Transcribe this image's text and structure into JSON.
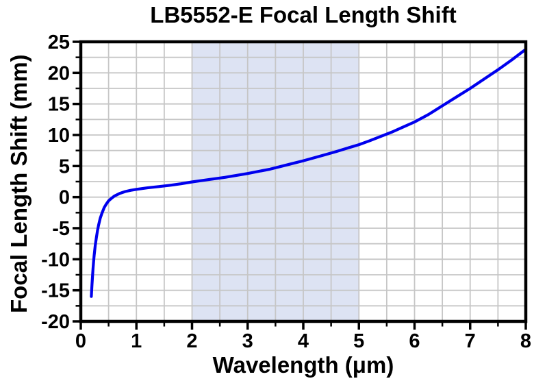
{
  "chart_data": {
    "type": "line",
    "title": "LB5552-E Focal Length Shift",
    "xlabel": "Wavelength (μm)",
    "ylabel": "Focal Length Shift (mm)",
    "xlim": [
      0,
      8
    ],
    "ylim": [
      -20,
      25
    ],
    "x_ticks": [
      0,
      1,
      2,
      3,
      4,
      5,
      6,
      7,
      8
    ],
    "y_ticks": [
      -20,
      -15,
      -10,
      -5,
      0,
      5,
      10,
      15,
      20,
      25
    ],
    "x_minor_tick_step": 0.5,
    "y_minor_tick_step": 2.5,
    "grid": "major-and-minor",
    "legend": "none",
    "shaded_band": {
      "x_start": 2,
      "x_end": 5,
      "color": "#dde3f3"
    },
    "series": [
      {
        "name": "Focal Length Shift",
        "color": "#0000ee",
        "points": [
          [
            0.19,
            -16.0
          ],
          [
            0.2,
            -14.2
          ],
          [
            0.21,
            -12.8
          ],
          [
            0.22,
            -11.5
          ],
          [
            0.23,
            -10.4
          ],
          [
            0.24,
            -9.4
          ],
          [
            0.26,
            -7.8
          ],
          [
            0.28,
            -6.5
          ],
          [
            0.3,
            -5.4
          ],
          [
            0.32,
            -4.5
          ],
          [
            0.35,
            -3.4
          ],
          [
            0.38,
            -2.6
          ],
          [
            0.42,
            -1.7
          ],
          [
            0.46,
            -1.1
          ],
          [
            0.5,
            -0.6
          ],
          [
            0.55,
            -0.2
          ],
          [
            0.6,
            0.15
          ],
          [
            0.7,
            0.6
          ],
          [
            0.8,
            0.9
          ],
          [
            0.9,
            1.1
          ],
          [
            1.0,
            1.25
          ],
          [
            1.2,
            1.5
          ],
          [
            1.4,
            1.7
          ],
          [
            1.6,
            1.9
          ],
          [
            1.8,
            2.15
          ],
          [
            2.0,
            2.45
          ],
          [
            2.2,
            2.7
          ],
          [
            2.4,
            2.95
          ],
          [
            2.6,
            3.2
          ],
          [
            2.8,
            3.5
          ],
          [
            3.0,
            3.8
          ],
          [
            3.2,
            4.15
          ],
          [
            3.4,
            4.5
          ],
          [
            3.6,
            4.95
          ],
          [
            3.8,
            5.4
          ],
          [
            4.0,
            5.85
          ],
          [
            4.2,
            6.35
          ],
          [
            4.4,
            6.85
          ],
          [
            4.6,
            7.35
          ],
          [
            4.8,
            7.9
          ],
          [
            5.0,
            8.45
          ],
          [
            5.2,
            9.1
          ],
          [
            5.4,
            9.8
          ],
          [
            5.6,
            10.5
          ],
          [
            5.8,
            11.3
          ],
          [
            6.0,
            12.1
          ],
          [
            6.25,
            13.3
          ],
          [
            6.5,
            14.7
          ],
          [
            6.75,
            16.1
          ],
          [
            7.0,
            17.5
          ],
          [
            7.25,
            19.0
          ],
          [
            7.5,
            20.5
          ],
          [
            7.75,
            22.1
          ],
          [
            8.0,
            23.8
          ]
        ]
      }
    ]
  },
  "colors": {
    "curve": "#0000ee",
    "band": "#dde3f3",
    "grid": "#c6c6c6",
    "axis": "#000000",
    "background": "#ffffff",
    "text": "#000000"
  }
}
